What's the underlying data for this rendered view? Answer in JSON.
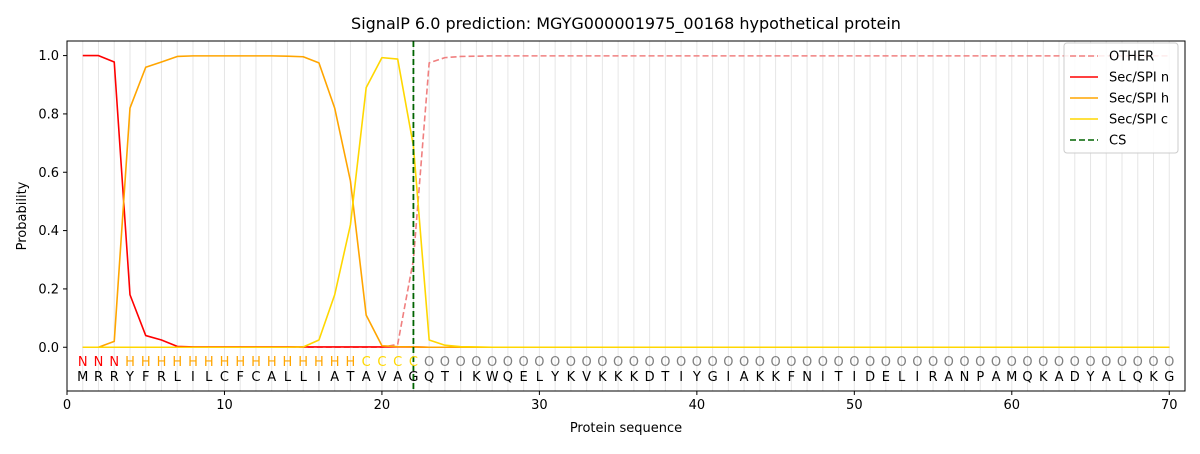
{
  "chart_data": {
    "type": "line",
    "title": "SignalP 6.0 prediction: MGYG000001975_00168 hypothetical protein",
    "xlabel": "Protein sequence",
    "ylabel": "Probability",
    "xlim": [
      0,
      71
    ],
    "ylim": [
      -0.15,
      1.05
    ],
    "xticks": [
      0,
      10,
      20,
      30,
      40,
      50,
      60,
      70
    ],
    "yticks": [
      0.0,
      0.2,
      0.4,
      0.6,
      0.8,
      1.0
    ],
    "x_tick_labels": [
      "0",
      "10",
      "20",
      "30",
      "40",
      "50",
      "60",
      "70"
    ],
    "y_tick_labels": [
      "0.0",
      "0.2",
      "0.4",
      "0.6",
      "0.8",
      "1.0"
    ],
    "legend_position": "top-right",
    "sequence": [
      "M",
      "R",
      "R",
      "Y",
      "F",
      "R",
      "L",
      "I",
      "L",
      "C",
      "F",
      "C",
      "A",
      "L",
      "L",
      "I",
      "A",
      "T",
      "A",
      "V",
      "A",
      "G",
      "Q",
      "T",
      "I",
      "K",
      "W",
      "Q",
      "E",
      "L",
      "Y",
      "K",
      "V",
      "K",
      "K",
      "K",
      "D",
      "T",
      "I",
      "Y",
      "G",
      "I",
      "A",
      "K",
      "K",
      "F",
      "N",
      "I",
      "T",
      "I",
      "D",
      "E",
      "L",
      "I",
      "R",
      "A",
      "N",
      "P",
      "A",
      "M",
      "Q",
      "K",
      "A",
      "D",
      "Y",
      "A",
      "L",
      "Q",
      "K",
      "G"
    ],
    "region_labels": [
      "N",
      "N",
      "N",
      "H",
      "H",
      "H",
      "H",
      "H",
      "H",
      "H",
      "H",
      "H",
      "H",
      "H",
      "H",
      "H",
      "H",
      "H",
      "C",
      "C",
      "C",
      "C",
      "O",
      "O",
      "O",
      "O",
      "O",
      "O",
      "O",
      "O",
      "O",
      "O",
      "O",
      "O",
      "O",
      "O",
      "O",
      "O",
      "O",
      "O",
      "O",
      "O",
      "O",
      "O",
      "O",
      "O",
      "O",
      "O",
      "O",
      "O",
      "O",
      "O",
      "O",
      "O",
      "O",
      "O",
      "O",
      "O",
      "O",
      "O",
      "O",
      "O",
      "O",
      "O",
      "O",
      "O",
      "O",
      "O",
      "O",
      "O"
    ],
    "region_colors": {
      "N": "#ff0000",
      "H": "#ffa500",
      "C": "#ffd700",
      "O": "#808080"
    },
    "cs_position": 22,
    "series": [
      {
        "name": "OTHER",
        "color": "#f08080",
        "dash": "dashed",
        "values": [
          0.0,
          0.0,
          0.0,
          0.0,
          0.0,
          0.0,
          0.0,
          0.0,
          0.0,
          0.0,
          0.0,
          0.0,
          0.0,
          0.0,
          0.0,
          0.0,
          0.0,
          0.0,
          0.0,
          0.0,
          0.01,
          0.3,
          0.975,
          0.993,
          0.997,
          0.998,
          0.999,
          0.999,
          0.999,
          0.999,
          0.999,
          0.999,
          0.999,
          0.999,
          0.999,
          0.999,
          0.999,
          0.999,
          0.999,
          0.999,
          0.999,
          0.999,
          0.999,
          0.999,
          0.999,
          0.999,
          0.999,
          0.999,
          0.999,
          0.999,
          0.999,
          0.999,
          0.999,
          0.999,
          0.999,
          0.999,
          0.999,
          0.999,
          0.999,
          0.999,
          0.999,
          0.999,
          0.999,
          0.999,
          0.999,
          0.999,
          0.999,
          0.999,
          0.999,
          0.999
        ]
      },
      {
        "name": "Sec/SPI n",
        "color": "#ff0000",
        "dash": "solid",
        "values": [
          1.0,
          1.0,
          0.978,
          0.18,
          0.04,
          0.025,
          0.003,
          0.001,
          0.001,
          0.001,
          0.001,
          0.001,
          0.001,
          0.001,
          0.001,
          0.001,
          0.001,
          0.001,
          0.001,
          0.001,
          0.001,
          0.001,
          0.0,
          0.0,
          0.0,
          0.0,
          0.0,
          0.0,
          0.0,
          0.0,
          0.0,
          0.0,
          0.0,
          0.0,
          0.0,
          0.0,
          0.0,
          0.0,
          0.0,
          0.0,
          0.0,
          0.0,
          0.0,
          0.0,
          0.0,
          0.0,
          0.0,
          0.0,
          0.0,
          0.0,
          0.0,
          0.0,
          0.0,
          0.0,
          0.0,
          0.0,
          0.0,
          0.0,
          0.0,
          0.0,
          0.0,
          0.0,
          0.0,
          0.0,
          0.0,
          0.0,
          0.0,
          0.0,
          0.0,
          0.0
        ]
      },
      {
        "name": "Sec/SPI h",
        "color": "#ffa500",
        "dash": "solid",
        "values": [
          0.0,
          0.0,
          0.02,
          0.82,
          0.96,
          0.978,
          0.997,
          0.999,
          0.999,
          0.999,
          0.999,
          0.999,
          0.999,
          0.998,
          0.996,
          0.975,
          0.82,
          0.57,
          0.11,
          0.005,
          0.002,
          0.001,
          0.0,
          0.0,
          0.0,
          0.0,
          0.0,
          0.0,
          0.0,
          0.0,
          0.0,
          0.0,
          0.0,
          0.0,
          0.0,
          0.0,
          0.0,
          0.0,
          0.0,
          0.0,
          0.0,
          0.0,
          0.0,
          0.0,
          0.0,
          0.0,
          0.0,
          0.0,
          0.0,
          0.0,
          0.0,
          0.0,
          0.0,
          0.0,
          0.0,
          0.0,
          0.0,
          0.0,
          0.0,
          0.0,
          0.0,
          0.0,
          0.0,
          0.0,
          0.0,
          0.0,
          0.0,
          0.0,
          0.0,
          0.0
        ]
      },
      {
        "name": "Sec/SPI c",
        "color": "#ffd700",
        "dash": "solid",
        "values": [
          0.0,
          0.0,
          0.0,
          0.0,
          0.0,
          0.0,
          0.0,
          0.0,
          0.0,
          0.0,
          0.0,
          0.0,
          0.0,
          0.0,
          0.001,
          0.025,
          0.18,
          0.42,
          0.89,
          0.993,
          0.988,
          0.69,
          0.025,
          0.007,
          0.002,
          0.001,
          0.0,
          0.0,
          0.0,
          0.0,
          0.0,
          0.0,
          0.0,
          0.0,
          0.0,
          0.0,
          0.0,
          0.0,
          0.0,
          0.0,
          0.0,
          0.0,
          0.0,
          0.0,
          0.0,
          0.0,
          0.0,
          0.0,
          0.0,
          0.0,
          0.0,
          0.0,
          0.0,
          0.0,
          0.0,
          0.0,
          0.0,
          0.0,
          0.0,
          0.0,
          0.0,
          0.0,
          0.0,
          0.0,
          0.0,
          0.0,
          0.0,
          0.0,
          0.0,
          0.0
        ]
      },
      {
        "name": "CS",
        "color": "#006400",
        "dash": "dashed",
        "values": []
      }
    ]
  }
}
